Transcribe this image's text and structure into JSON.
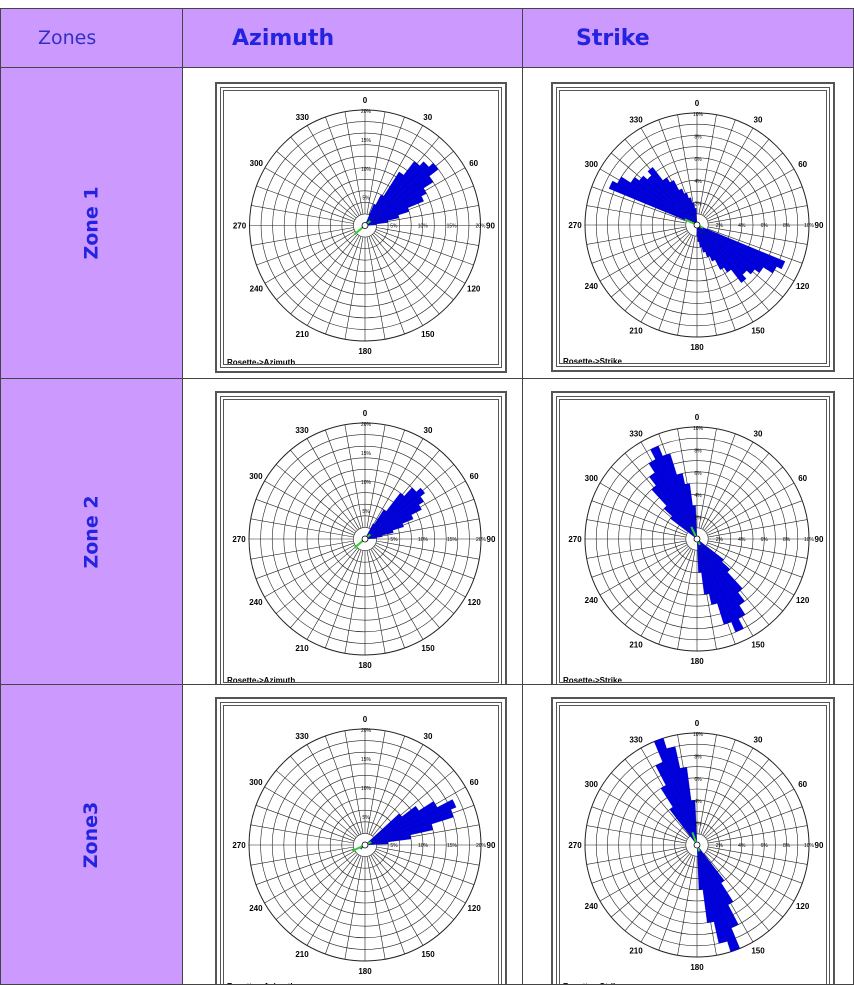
{
  "table": {
    "header": {
      "zones": "Zones",
      "azimuth": "Azimuth",
      "strike": "Strike"
    },
    "rows": [
      {
        "zone": "Zone 1"
      },
      {
        "zone": "Zone 2"
      },
      {
        "zone": "Zone3"
      }
    ]
  },
  "colors": {
    "header_bg": "#cc99ff",
    "header_text": "#2323e0",
    "petal": "#0000dd",
    "mean_line": "#33cc33"
  },
  "rose": {
    "angle_labels": [
      "0",
      "30",
      "60",
      "90",
      "120",
      "150",
      "180",
      "210",
      "240",
      "270",
      "300",
      "330"
    ],
    "azimuth_radial_labels": [
      "5%",
      "10%",
      "15%",
      "20%"
    ],
    "strike_radial_labels": [
      "2%",
      "4%",
      "6%",
      "8%",
      "10%"
    ]
  },
  "chart_data": [
    {
      "type": "rose",
      "title": "Rosette->Azimuth",
      "zone": "Zone 1",
      "rmax": 20,
      "bin_width_deg": 5,
      "bins_deg": [
        25,
        30,
        35,
        40,
        45,
        50,
        55,
        60,
        65,
        70,
        75,
        80,
        85
      ],
      "values": [
        4,
        6,
        11,
        14,
        15,
        16,
        14,
        12,
        11,
        8,
        6,
        4,
        2
      ]
    },
    {
      "type": "rose",
      "title": "Rosette->Strike",
      "zone": "Zone 1",
      "rmax": 10,
      "bin_width_deg": 5,
      "bins_deg": [
        115,
        120,
        125,
        130,
        135,
        140,
        145,
        150,
        155,
        160,
        165,
        170,
        175,
        180,
        295,
        300,
        305,
        310,
        315,
        320,
        325,
        330,
        335,
        340,
        345,
        350,
        355
      ],
      "values": [
        8.5,
        8,
        7,
        6.5,
        6,
        6.5,
        5,
        4.5,
        3.5,
        3,
        2.5,
        2,
        1.5,
        1,
        8.5,
        8,
        7,
        6.5,
        6,
        6.5,
        5,
        4.5,
        3.5,
        3,
        2.5,
        2,
        1.5
      ]
    },
    {
      "type": "rose",
      "title": "Rosette->Azimuth",
      "zone": "Zone 2",
      "rmax": 20,
      "bin_width_deg": 5,
      "bins_deg": [
        30,
        35,
        40,
        45,
        50,
        55,
        60,
        65,
        70,
        75,
        80,
        85,
        225,
        230
      ],
      "values": [
        3,
        6,
        10,
        12,
        13,
        12,
        11,
        9,
        7,
        5,
        3,
        2,
        1,
        1
      ]
    },
    {
      "type": "rose",
      "title": "Rosette->Strike",
      "zone": "Zone 2",
      "rmax": 10,
      "bin_width_deg": 5,
      "bins_deg": [
        130,
        135,
        140,
        145,
        150,
        155,
        160,
        165,
        170,
        175,
        310,
        315,
        320,
        325,
        330,
        335,
        340,
        345,
        350,
        355
      ],
      "values": [
        3,
        4,
        6,
        7,
        8,
        9,
        8,
        6,
        5,
        3,
        3,
        4,
        6,
        7,
        8,
        9,
        8,
        6,
        5,
        3
      ]
    },
    {
      "type": "rose",
      "title": "Rosette->Azimuth",
      "zone": "Zone3",
      "rmax": 20,
      "bin_width_deg": 5,
      "bins_deg": [
        50,
        55,
        60,
        65,
        70,
        75,
        80,
        85,
        225,
        230
      ],
      "values": [
        8,
        11,
        14,
        17,
        16,
        12,
        8,
        4,
        1,
        1
      ]
    },
    {
      "type": "rose",
      "title": "Rosette->Strike",
      "zone": "Zone3",
      "rmax": 10,
      "bin_width_deg": 5,
      "bins_deg": [
        145,
        150,
        155,
        160,
        165,
        170,
        175,
        325,
        330,
        335,
        340,
        345,
        350,
        355
      ],
      "values": [
        4,
        6,
        8,
        10,
        9,
        7,
        4,
        4,
        6,
        8,
        10,
        9,
        7,
        4
      ]
    }
  ]
}
